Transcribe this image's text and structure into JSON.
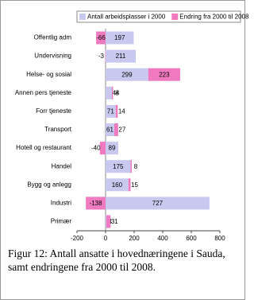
{
  "chart_data": {
    "type": "bar",
    "orientation": "horizontal",
    "stacked": true,
    "categories": [
      "Offentlig adm",
      "Undervisning",
      "Helse- og sosial",
      "Annen pers tjeneste",
      "Forr tjeneste",
      "Transport",
      "Hotell og restaurant",
      "Handel",
      "Bygg og anlegg",
      "Industri",
      "Primær"
    ],
    "series": [
      {
        "name": "Antall arbeidsplasser i 2000",
        "color": "#c9c9f0",
        "values": [
          197,
          211,
          299,
          44,
          71,
          61,
          89,
          175,
          160,
          727,
          4
        ]
      },
      {
        "name": "Endring fra 2000 til 2008",
        "color": "#f07ac0",
        "values": [
          -66,
          -3,
          223,
          8,
          14,
          27,
          -40,
          8,
          15,
          -138,
          31
        ]
      }
    ],
    "xlim": [
      -200,
      800
    ],
    "xticks": [
      -200,
      0,
      200,
      400,
      600,
      800
    ],
    "legend": "top",
    "caption": "Figur 12: Antall ansatte i hovednæringene i Sauda, samt endringene fra 2000 til 2008."
  }
}
